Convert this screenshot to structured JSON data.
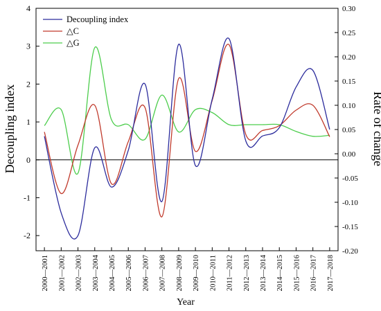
{
  "chart_data": {
    "type": "line",
    "title": "",
    "xlabel": "Year",
    "ylabel_left": "Decoupling index",
    "ylabel_right": "Rate  of change",
    "categories": [
      "2000—2001",
      "2001—2002",
      "2002—2003",
      "2003—2004",
      "2004—2005",
      "2005—2006",
      "2006—2007",
      "2007—2008",
      "2008—2009",
      "2009—2010",
      "2010—2011",
      "2011—2012",
      "2012—2013",
      "2013—2014",
      "2014—2015",
      "2015—2016",
      "2016—2017",
      "2017—2018"
    ],
    "ylim_left": [
      -2.4,
      4
    ],
    "ylim_right": [
      -0.2,
      0.3
    ],
    "yticks_left": [
      "-2",
      "-1",
      "0",
      "1",
      "2",
      "3",
      "4"
    ],
    "yticks_right": [
      "-0.20",
      "-0.15",
      "-0.10",
      "-0.05",
      "0.00",
      "0.05",
      "0.10",
      "0.15",
      "0.20",
      "0.25",
      "0.30"
    ],
    "zero_line": true,
    "legend_position": "top-left",
    "series": [
      {
        "name": "Decoupling index",
        "axis": "left",
        "color": "#2b2b9c",
        "values": [
          0.62,
          -1.4,
          -2.0,
          0.32,
          -0.72,
          0.25,
          2.0,
          -1.1,
          3.05,
          -0.15,
          1.6,
          3.2,
          0.5,
          0.63,
          0.85,
          1.92,
          2.36,
          0.8
        ]
      },
      {
        "name": "△C",
        "axis": "right",
        "color": "#c0392b",
        "values": [
          0.045,
          -0.082,
          0.018,
          0.1,
          -0.062,
          0.025,
          0.095,
          -0.13,
          0.155,
          0.005,
          0.11,
          0.225,
          0.04,
          0.048,
          0.058,
          0.09,
          0.1,
          0.035
        ]
      },
      {
        "name": "△G",
        "axis": "right",
        "color": "#4ccd4c",
        "values": [
          0.058,
          0.091,
          -0.04,
          0.219,
          0.07,
          0.06,
          0.03,
          0.121,
          0.045,
          0.091,
          0.085,
          0.06,
          0.06,
          0.06,
          0.06,
          0.046,
          0.036,
          0.038
        ]
      }
    ]
  }
}
